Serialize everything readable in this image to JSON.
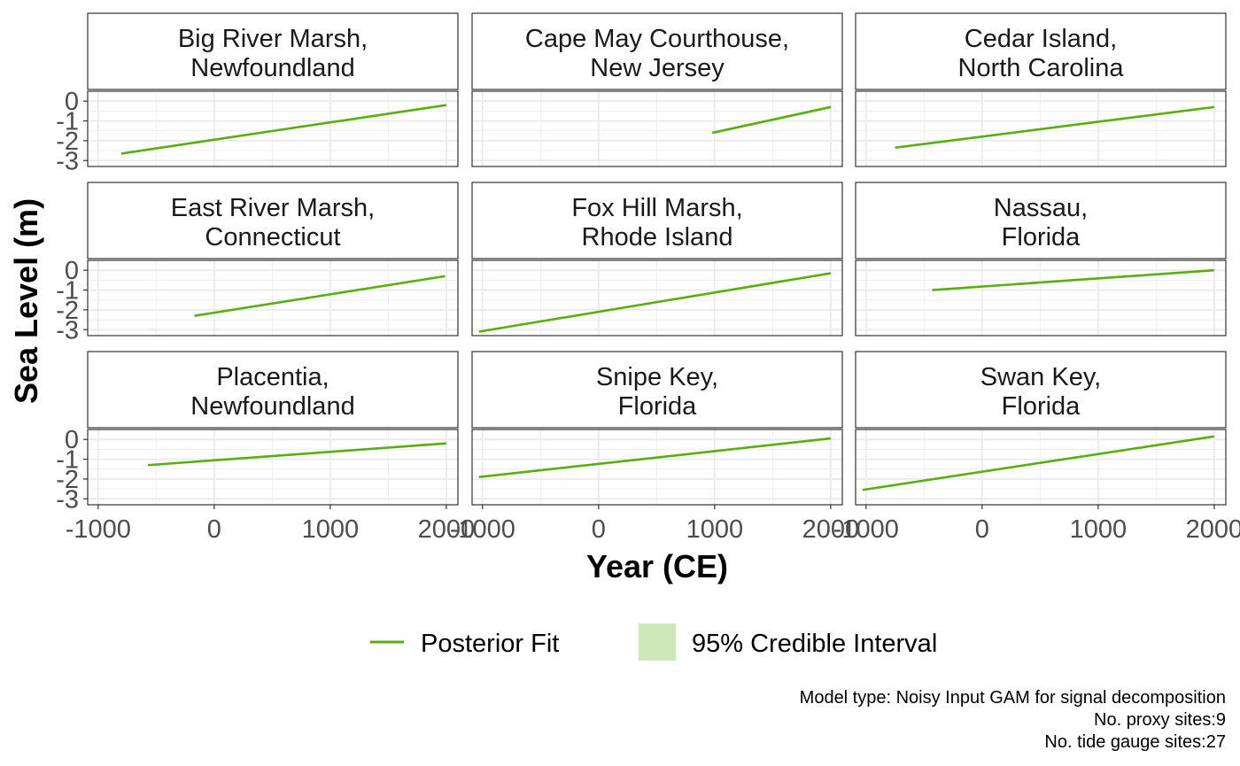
{
  "chart_data": {
    "type": "line",
    "xlabel": "Year (CE)",
    "ylabel": "Sea Level (m)",
    "xlim": [
      -1090,
      2100
    ],
    "ylim": [
      -3.3,
      0.5
    ],
    "x_ticks": [
      -1000,
      0,
      1000,
      2000
    ],
    "x_tick_labels": [
      "-1000",
      "0",
      "1000",
      "2000"
    ],
    "y_ticks": [
      0,
      -1,
      -2,
      -3
    ],
    "y_tick_labels": [
      "0",
      "-1",
      "-2",
      "-3"
    ],
    "grid": true,
    "legend": {
      "placement": "bottom",
      "entries": [
        {
          "label": "Posterior Fit",
          "kind": "line"
        },
        {
          "label": "95% Credible Interval",
          "kind": "fill"
        }
      ]
    },
    "caption": [
      "Model type: Noisy Input GAM for signal decomposition ",
      "No. proxy sites:9",
      "No. tide gauge sites:27"
    ],
    "colors": {
      "line": "#5aae12",
      "ci_fill": "#cfe8b8",
      "grid": "#ebebeb",
      "border": "#333333"
    },
    "panels": [
      {
        "title_line1": "Big River Marsh,",
        "title_line2": "Newfoundland",
        "x": [
          -800,
          2000
        ],
        "y": [
          -2.65,
          -0.2
        ],
        "ci": 0.05
      },
      {
        "title_line1": "Cape May Courthouse,",
        "title_line2": "New Jersey",
        "x": [
          980,
          2000
        ],
        "y": [
          -1.6,
          -0.3
        ],
        "ci": 0.07
      },
      {
        "title_line1": "Cedar Island,",
        "title_line2": "North Carolina",
        "x": [
          -750,
          2000
        ],
        "y": [
          -2.35,
          -0.3
        ],
        "ci": 0.05
      },
      {
        "title_line1": "East River Marsh,",
        "title_line2": "Connecticut",
        "x": [
          -170,
          1990
        ],
        "y": [
          -2.3,
          -0.3
        ],
        "ci": 0.05
      },
      {
        "title_line1": "Fox Hill Marsh,",
        "title_line2": "Rhode Island",
        "x": [
          -1030,
          2000
        ],
        "y": [
          -3.1,
          -0.15
        ],
        "ci": 0.05
      },
      {
        "title_line1": "Nassau,",
        "title_line2": "Florida",
        "x": [
          -430,
          2000
        ],
        "y": [
          -1.0,
          0.0
        ],
        "ci": 0.05
      },
      {
        "title_line1": "Placentia,",
        "title_line2": "Newfoundland",
        "x": [
          -570,
          2000
        ],
        "y": [
          -1.3,
          -0.2
        ],
        "ci": 0.05
      },
      {
        "title_line1": "Snipe Key,",
        "title_line2": "Florida",
        "x": [
          -1030,
          2000
        ],
        "y": [
          -1.9,
          0.05
        ],
        "ci": 0.05
      },
      {
        "title_line1": "Swan Key,",
        "title_line2": "Florida",
        "x": [
          -1030,
          2000
        ],
        "y": [
          -2.55,
          0.15
        ],
        "ci": 0.05
      }
    ]
  }
}
